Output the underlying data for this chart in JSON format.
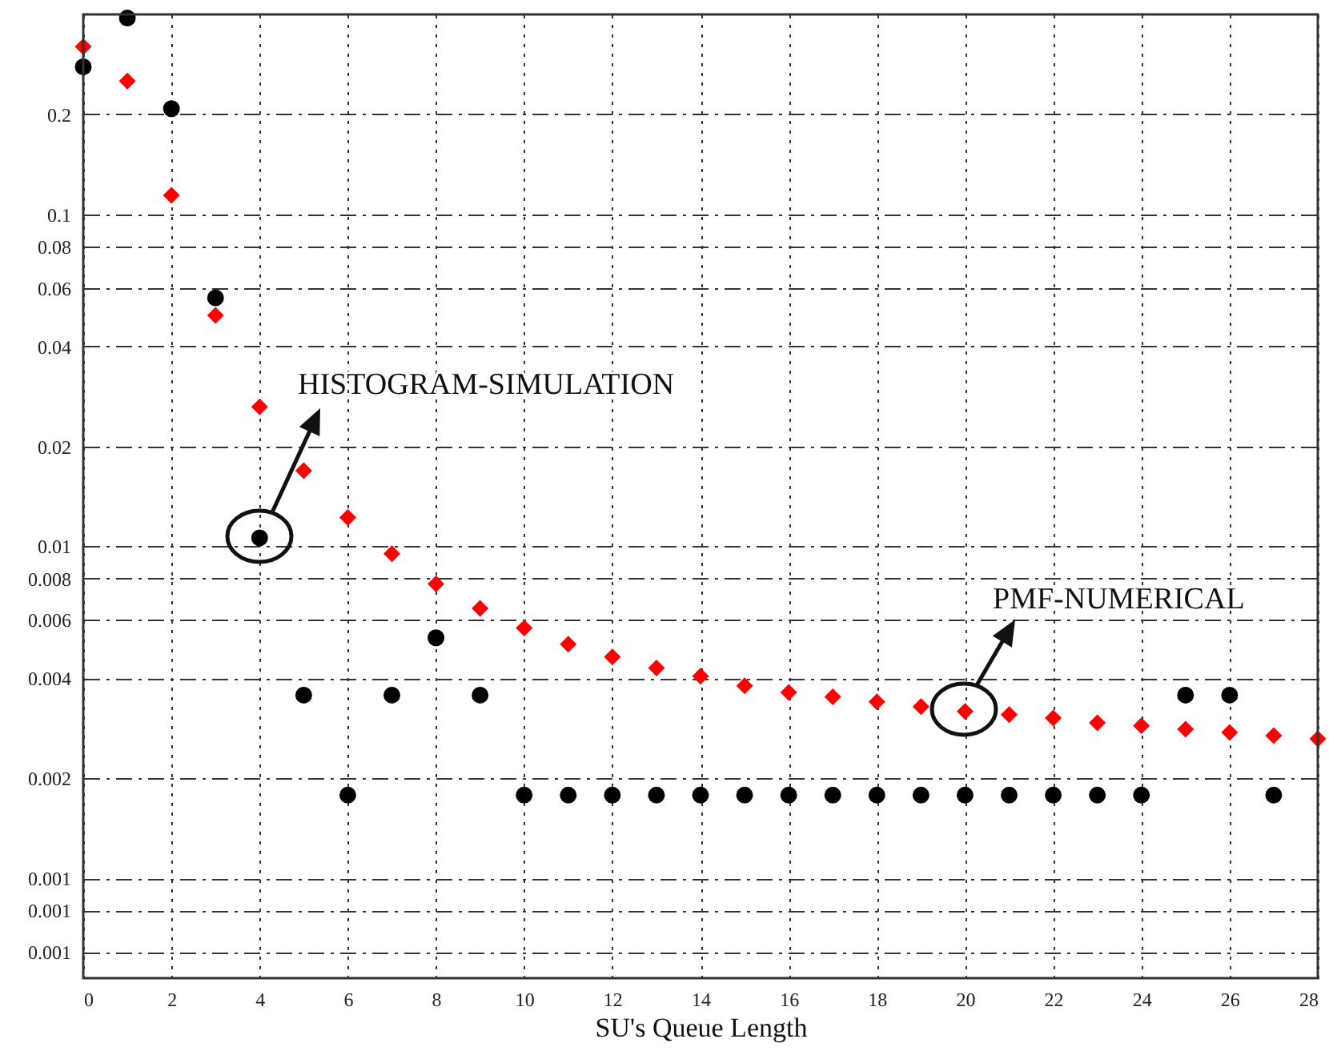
{
  "chart_data": {
    "type": "scatter",
    "xlabel": "SU's Queue Length",
    "x": [
      0,
      1,
      2,
      3,
      4,
      5,
      6,
      7,
      8,
      9,
      10,
      11,
      12,
      13,
      14,
      15,
      16,
      17,
      18,
      19,
      20,
      21,
      22,
      23,
      24,
      25,
      26,
      27,
      28
    ],
    "series": [
      {
        "color": "#000000",
        "marker": "circle",
        "x": [
          0,
          1,
          2,
          3,
          4,
          5,
          6,
          7,
          8,
          9,
          10,
          11,
          12,
          13,
          14,
          15,
          16,
          17,
          18,
          19,
          20,
          21,
          22,
          23,
          24,
          25,
          26,
          27
        ],
        "values": [
          0.278,
          0.39,
          0.208,
          0.056,
          0.0106,
          0.00356,
          0.00178,
          0.00356,
          0.0053,
          0.00356,
          0.00178,
          0.00178,
          0.00178,
          0.00178,
          0.00178,
          0.00178,
          0.00178,
          0.00178,
          0.00178,
          0.00178,
          0.00178,
          0.00178,
          0.00178,
          0.00178,
          0.00178,
          0.00356,
          0.00356,
          0.00178
        ]
      },
      {
        "color": "#ff0000",
        "marker": "diamond",
        "values": [
          0.32,
          0.252,
          0.114,
          0.0496,
          0.0263,
          0.0169,
          0.0122,
          0.0095,
          0.0077,
          0.0065,
          0.00567,
          0.00507,
          0.00464,
          0.0043,
          0.00406,
          0.0038,
          0.00363,
          0.00352,
          0.0034,
          0.00329,
          0.00318,
          0.00311,
          0.00304,
          0.00294,
          0.00288,
          0.00281,
          0.00275,
          0.00269,
          0.00263
        ]
      }
    ],
    "annotations": [
      "HISTOGRAM-SIMULATION",
      "PMF-NUMERICAL"
    ],
    "log": "y",
    "xlim": [
      0,
      28
    ],
    "xticks": [
      0,
      2,
      4,
      6,
      8,
      10,
      12,
      14,
      16,
      18,
      20,
      22,
      24,
      26,
      28
    ],
    "ylim": [
      0.0005,
      0.4
    ],
    "yticks": [
      0.2,
      0.1,
      0.08,
      0.06,
      0.04,
      0.02,
      0.01,
      0.008,
      0.006,
      0.004,
      0.002,
      0.001,
      {
        "value": 0.0008,
        "label": "0.001"
      },
      {
        "value": 0.0006,
        "label": "0.001"
      }
    ],
    "grid": true
  }
}
